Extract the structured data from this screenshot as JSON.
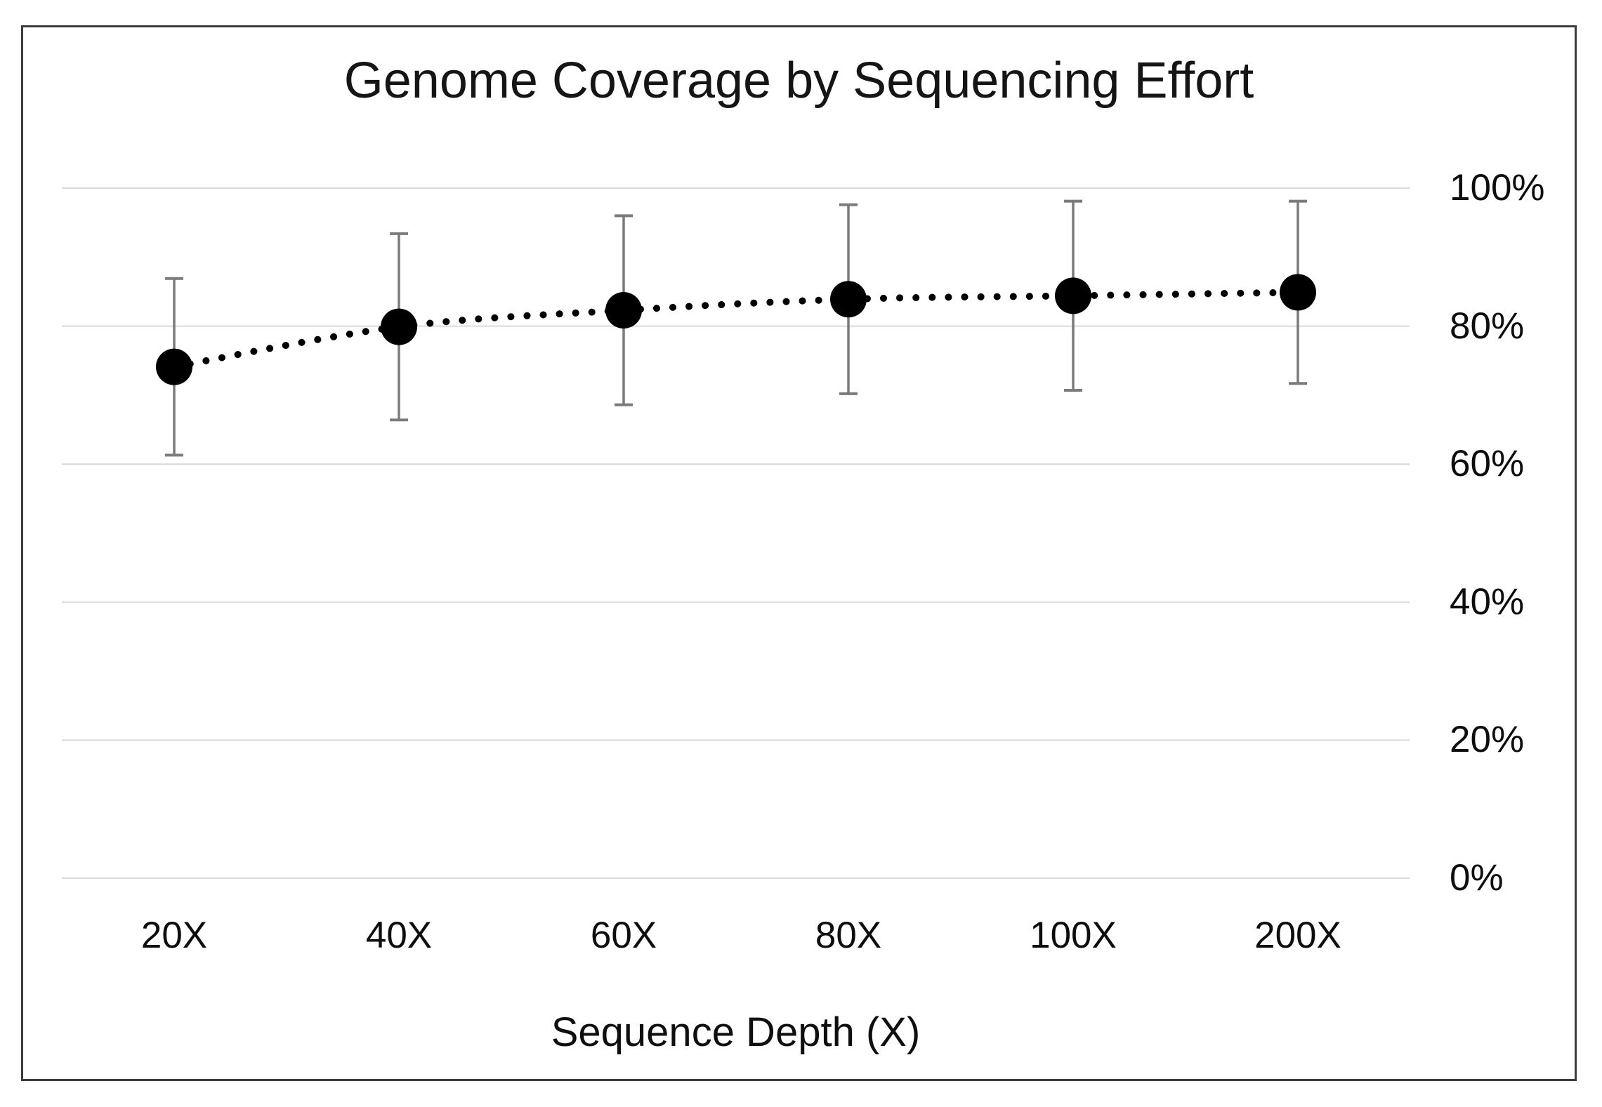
{
  "chart_data": {
    "type": "line",
    "subtype": "dotted-line-with-markers-and-error-bars",
    "title": "Genome Coverage by Sequencing Effort",
    "xlabel": "Sequence Depth (X)",
    "ylabel": "",
    "categories": [
      "20X",
      "40X",
      "60X",
      "80X",
      "100X",
      "200X"
    ],
    "series": [
      {
        "name": "Genome coverage",
        "values": [
          74.1,
          79.9,
          82.3,
          83.9,
          84.4,
          84.9
        ],
        "error_plus": [
          12.8,
          13.5,
          13.7,
          13.7,
          13.7,
          13.2
        ],
        "error_minus": [
          12.8,
          13.5,
          13.7,
          13.7,
          13.7,
          13.2
        ]
      }
    ],
    "y_ticks": [
      {
        "value": 0,
        "label": "0%"
      },
      {
        "value": 20,
        "label": "20%"
      },
      {
        "value": 40,
        "label": "40%"
      },
      {
        "value": 60,
        "label": "60%"
      },
      {
        "value": 80,
        "label": "80%"
      },
      {
        "value": 100,
        "label": "100%"
      }
    ],
    "ylim": [
      0,
      100
    ],
    "y_axis_side": "right",
    "grid": "horizontal",
    "legend": "none",
    "line_style": "dotted",
    "marker": "filled-circle",
    "colors": {
      "marker": "#000000",
      "line": "#000000",
      "error_bar": "#7b7b7b",
      "gridline": "#d9d9d9",
      "frame_border": "#3c3c3c",
      "text": "#111111",
      "background": "#ffffff"
    }
  }
}
